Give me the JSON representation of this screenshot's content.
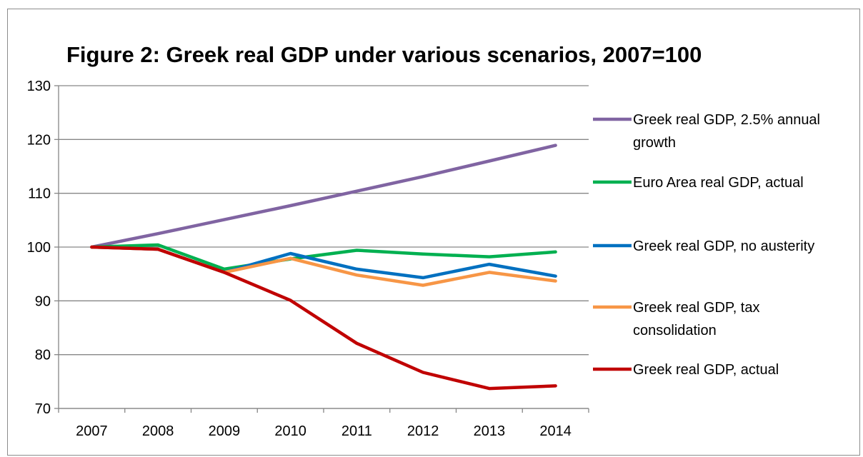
{
  "chart_data": {
    "type": "line",
    "title": "Figure 2: Greek real GDP under various scenarios, 2007=100",
    "xlabel": "",
    "ylabel": "",
    "x": [
      "2007",
      "2008",
      "2009",
      "2010",
      "2011",
      "2012",
      "2013",
      "2014"
    ],
    "ylim": [
      70,
      130
    ],
    "yticks": [
      "70",
      "80",
      "90",
      "100",
      "110",
      "120",
      "130"
    ],
    "grid": true,
    "legend_position": "right",
    "series": [
      {
        "name": "Greek real GDP, 2.5% annual growth",
        "color": "#8064a2",
        "values": [
          100,
          102.5,
          105.1,
          107.7,
          110.4,
          113.1,
          116.0,
          118.9
        ]
      },
      {
        "name": "Euro Area real GDP, actual",
        "color": "#00b050",
        "values": [
          100,
          100.4,
          95.9,
          97.8,
          99.4,
          98.7,
          98.2,
          99.1
        ]
      },
      {
        "name": "Greek real GDP, no austerity",
        "color": "#0070c0",
        "values": [
          100,
          99.6,
          95.3,
          98.8,
          95.9,
          94.3,
          96.8,
          94.6
        ]
      },
      {
        "name": "Greek real GDP, tax consolidation",
        "color": "#f79646",
        "values": [
          100,
          99.6,
          95.3,
          97.9,
          94.8,
          92.9,
          95.3,
          93.7
        ]
      },
      {
        "name": "Greek real GDP, actual",
        "color": "#c00000",
        "values": [
          100,
          99.6,
          95.3,
          90.1,
          82.1,
          76.7,
          73.7,
          74.2
        ]
      }
    ]
  }
}
